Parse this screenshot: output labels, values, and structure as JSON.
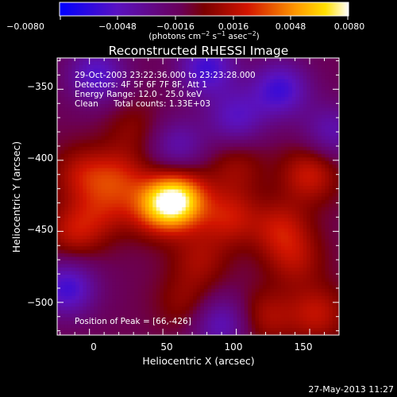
{
  "colorbar": {
    "ticks": [
      "−0.0080",
      "−0.0048",
      "−0.0016",
      "0.0016",
      "0.0048",
      "0.0080"
    ],
    "min": -0.008,
    "max": 0.008,
    "unit_prefix": "(photons cm",
    "unit_exp1": "−2",
    "unit_mid": " s",
    "unit_exp2": "−1",
    "unit_mid2": " asec",
    "unit_exp3": "−2",
    "unit_suffix": ")"
  },
  "chart_data": {
    "type": "heatmap",
    "title": "Reconstructed RHESSI Image",
    "xlabel": "Heliocentric X (arcsec)",
    "ylabel": "Heliocentric Y (arcsec)",
    "xlim": [
      -22,
      170
    ],
    "ylim": [
      -523,
      -328
    ],
    "xticks": [
      0,
      50,
      100,
      150
    ],
    "yticks": [
      -350,
      -400,
      -450,
      -500
    ],
    "xtick_labels": [
      "0",
      "50",
      "100",
      "150"
    ],
    "ytick_labels": [
      "−350",
      "−400",
      "−450",
      "−500"
    ],
    "peak": [
      66,
      -426
    ],
    "colormap": "fire (blue-purple-red-orange-yellow-white)",
    "sources": [
      {
        "x": 60,
        "y": -428,
        "amp": 0.008
      },
      {
        "x": 45,
        "y": -433,
        "amp": 0.004
      },
      {
        "x": 20,
        "y": -412,
        "amp": 0.003
      },
      {
        "x": -5,
        "y": -410,
        "amp": 0.0028
      },
      {
        "x": -10,
        "y": -450,
        "amp": 0.003
      },
      {
        "x": 10,
        "y": -435,
        "amp": 0.0022
      },
      {
        "x": 95,
        "y": -440,
        "amp": 0.0032
      },
      {
        "x": 130,
        "y": -448,
        "amp": 0.003
      },
      {
        "x": 140,
        "y": -470,
        "amp": 0.0024
      },
      {
        "x": 150,
        "y": -410,
        "amp": 0.0034
      },
      {
        "x": 155,
        "y": -508,
        "amp": 0.003
      },
      {
        "x": 120,
        "y": -510,
        "amp": 0.0025
      },
      {
        "x": 75,
        "y": -470,
        "amp": 0.0022
      },
      {
        "x": 65,
        "y": -500,
        "amp": 0.0018
      },
      {
        "x": 30,
        "y": -378,
        "amp": 0.0016
      },
      {
        "x": 100,
        "y": -405,
        "amp": 0.002
      },
      {
        "x": 80,
        "y": -335,
        "amp": -0.0045
      },
      {
        "x": 130,
        "y": -350,
        "amp": -0.0045
      },
      {
        "x": 5,
        "y": -340,
        "amp": -0.004
      },
      {
        "x": -15,
        "y": -490,
        "amp": -0.0045
      },
      {
        "x": 60,
        "y": -390,
        "amp": -0.003
      },
      {
        "x": 100,
        "y": -370,
        "amp": -0.0035
      },
      {
        "x": 165,
        "y": -380,
        "amp": -0.003
      },
      {
        "x": 90,
        "y": -515,
        "amp": -0.0035
      }
    ]
  },
  "annotations": {
    "time": "29-Oct-2003 23:22:36.000 to 23:23:28.000",
    "detectors": "Detectors: 4F 5F 6F 7F 8F, Att 1",
    "energy": "Energy Range: 12.0 - 25.0 keV",
    "clean": "Clean",
    "counts": "Total counts: 1.33E+03",
    "peak_label": "Position of Peak = [66,-426]"
  },
  "footer_date": "27-May-2013 11:27"
}
